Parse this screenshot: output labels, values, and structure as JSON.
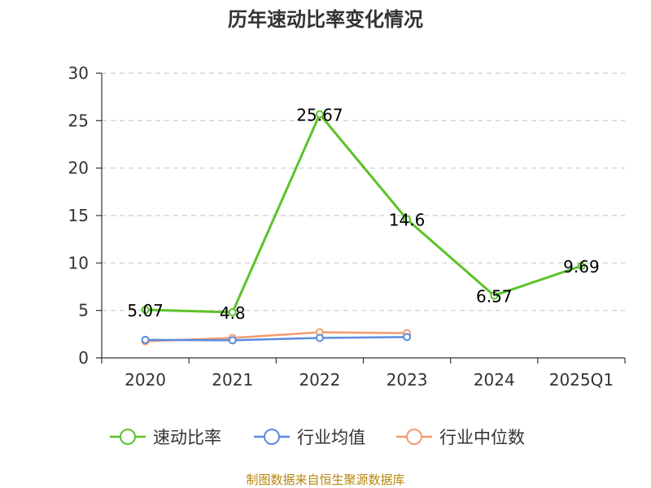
{
  "chart_data": {
    "type": "line",
    "title": "历年速动比率变化情况",
    "categories": [
      "2020",
      "2021",
      "2022",
      "2023",
      "2024",
      "2025Q1"
    ],
    "ylim": [
      0,
      30
    ],
    "yticks": [
      0,
      5,
      10,
      15,
      20,
      25,
      30
    ],
    "grid": true,
    "legend_position": "bottom",
    "series": [
      {
        "name": "速动比率",
        "color": "#5cc22a",
        "values": [
          5.07,
          4.8,
          25.67,
          14.6,
          6.57,
          9.69
        ],
        "show_labels": true
      },
      {
        "name": "行业均值",
        "color": "#5b8be0",
        "values": [
          1.9,
          1.85,
          2.1,
          2.2,
          null,
          null
        ],
        "show_labels": false
      },
      {
        "name": "行业中位数",
        "color": "#f59a6e",
        "values": [
          1.75,
          2.1,
          2.7,
          2.6,
          null,
          null
        ],
        "show_labels": false
      }
    ]
  },
  "source_text": "制图数据来自恒生聚源数据库"
}
